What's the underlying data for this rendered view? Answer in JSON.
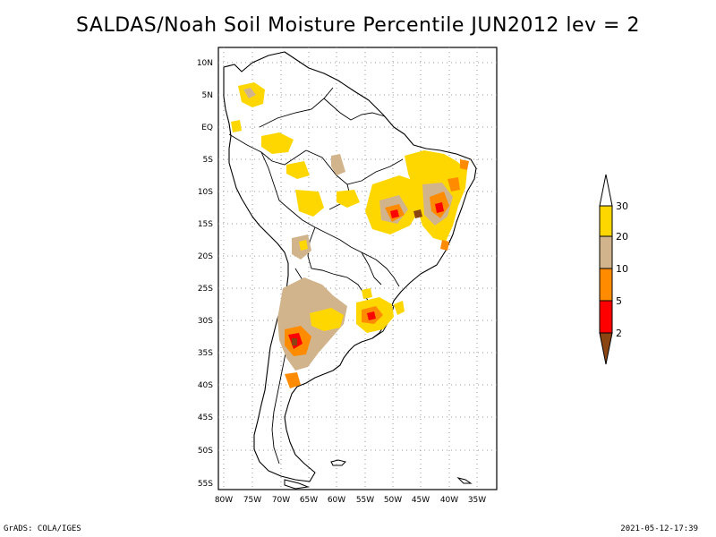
{
  "title": "SALDAS/Noah Soil Moisture Percentile JUN2012 lev = 2",
  "lat_labels": [
    "10N",
    "5N",
    "EQ",
    "5S",
    "10S",
    "15S",
    "20S",
    "25S",
    "30S",
    "35S",
    "40S",
    "45S",
    "50S",
    "55S"
  ],
  "lon_labels": [
    "80W",
    "75W",
    "70W",
    "65W",
    "60W",
    "55W",
    "50W",
    "45W",
    "40W",
    "35W"
  ],
  "legend": {
    "labels": [
      "2",
      "5",
      "10",
      "20",
      "30"
    ],
    "colors": {
      "below_2": "#8b4513",
      "2_5": "#ff0000",
      "5_10": "#ff8c00",
      "10_20": "#d2b48c",
      "20_30": "#ffd700",
      "above_30": "#ffffff"
    }
  },
  "footer_left": "GrADS: COLA/IGES",
  "footer_right": "2021-05-12-17:39"
}
